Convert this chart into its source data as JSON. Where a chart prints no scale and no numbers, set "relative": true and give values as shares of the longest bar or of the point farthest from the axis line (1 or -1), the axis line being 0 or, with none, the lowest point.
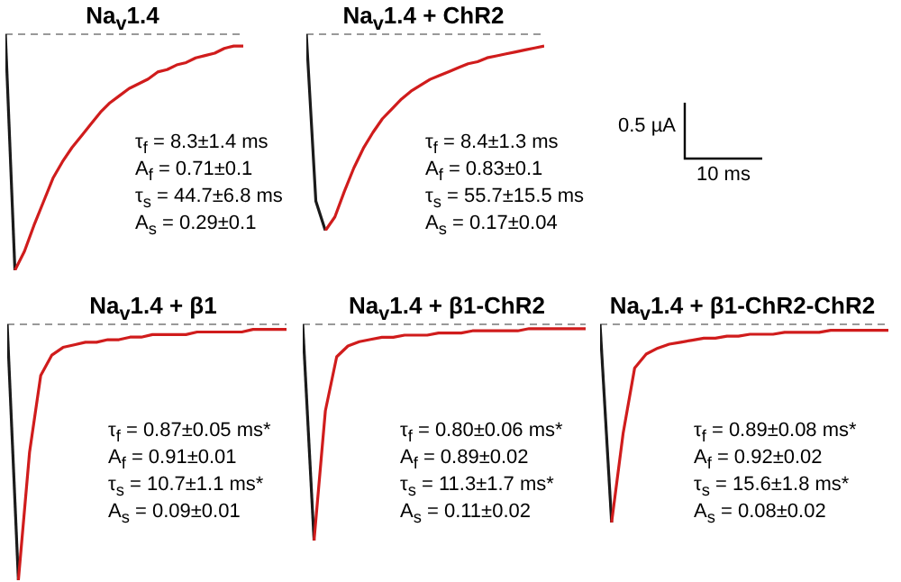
{
  "chart_data": [
    {
      "type": "line",
      "title": "Na$_{v}$1.4",
      "relative": true,
      "marker": "none",
      "categories": [
        null,
        null,
        null,
        null,
        null,
        null,
        null,
        null,
        null,
        null,
        null,
        null,
        null,
        null,
        null,
        null,
        null,
        null,
        null,
        null,
        null,
        null,
        null,
        null,
        null,
        null
      ],
      "series": [
        {
          "color": "#1a1a1a",
          "values": [
            0,
            -1,
            null,
            null,
            null,
            null,
            null,
            null,
            null,
            null,
            null,
            null,
            null,
            null,
            null,
            null,
            null,
            null,
            null,
            null,
            null,
            null,
            null,
            null,
            null,
            null
          ]
        },
        {
          "color": "#d01c1c",
          "values": [
            null,
            -1,
            -0.92,
            -0.81,
            -0.71,
            -0.61,
            -0.54,
            -0.48,
            -0.43,
            -0.38,
            -0.33,
            -0.29,
            -0.26,
            -0.23,
            -0.21,
            -0.19,
            -0.16,
            -0.15,
            -0.13,
            -0.12,
            -0.1,
            -0.09,
            -0.08,
            -0.06,
            -0.05,
            -0.05
          ]
        }
      ],
      "ref_lines": [
        {
          "axis": "y",
          "value": 0,
          "color": "#999999",
          "line_style": "dashed"
        }
      ],
      "annotations": [
        "τ$_{f}$ = 8.3±1.4 ms",
        "A$_{f}$ = 0.71±0.1",
        "τ$_{s}$ = 44.7±6.8 ms",
        "A$_{s}$ = 0.29±0.1"
      ]
    },
    {
      "type": "line",
      "title": "Na$_{v}$1.4 + ChR2",
      "relative": true,
      "marker": "none",
      "categories": [
        null,
        null,
        null,
        null,
        null,
        null,
        null,
        null,
        null,
        null,
        null,
        null,
        null,
        null,
        null,
        null,
        null,
        null,
        null,
        null,
        null,
        null,
        null,
        null,
        null,
        null
      ],
      "series": [
        {
          "color": "#1a1a1a",
          "values": [
            0,
            -0.85,
            -1,
            null,
            null,
            null,
            null,
            null,
            null,
            null,
            null,
            null,
            null,
            null,
            null,
            null,
            null,
            null,
            null,
            null,
            null,
            null,
            null,
            null,
            null,
            null
          ]
        },
        {
          "color": "#d01c1c",
          "values": [
            null,
            null,
            -1,
            -0.93,
            -0.8,
            -0.68,
            -0.58,
            -0.5,
            -0.43,
            -0.38,
            -0.33,
            -0.29,
            -0.26,
            -0.23,
            -0.21,
            -0.19,
            -0.17,
            -0.15,
            -0.14,
            -0.12,
            -0.11,
            -0.1,
            -0.09,
            -0.08,
            -0.07,
            -0.06
          ]
        }
      ],
      "ref_lines": [
        {
          "axis": "y",
          "value": 0,
          "color": "#999999",
          "line_style": "dashed"
        }
      ],
      "annotations": [
        "τ$_{f}$ = 8.4±1.3 ms",
        "A$_{f}$ = 0.83±0.1",
        "τ$_{s}$ = 55.7±15.5 ms",
        "A$_{s}$ = 0.17±0.04"
      ]
    },
    {
      "type": "other",
      "annotations": [
        "0.5 µA",
        "10 ms"
      ]
    },
    {
      "type": "line",
      "title": "Na$_{v}$1.4 + β1",
      "relative": true,
      "marker": "none",
      "categories": [
        null,
        null,
        null,
        null,
        null,
        null,
        null,
        null,
        null,
        null,
        null,
        null,
        null,
        null,
        null,
        null,
        null,
        null,
        null,
        null,
        null,
        null,
        null,
        null,
        null,
        null
      ],
      "series": [
        {
          "color": "#1a1a1a",
          "values": [
            0,
            -1,
            null,
            null,
            null,
            null,
            null,
            null,
            null,
            null,
            null,
            null,
            null,
            null,
            null,
            null,
            null,
            null,
            null,
            null,
            null,
            null,
            null,
            null,
            null,
            null
          ]
        },
        {
          "color": "#d01c1c",
          "values": [
            null,
            -1,
            -0.5,
            -0.2,
            -0.12,
            -0.09,
            -0.08,
            -0.07,
            -0.07,
            -0.06,
            -0.06,
            -0.05,
            -0.05,
            -0.04,
            -0.04,
            -0.04,
            -0.04,
            -0.03,
            -0.03,
            -0.03,
            -0.03,
            -0.03,
            -0.02,
            -0.02,
            -0.02,
            -0.02
          ]
        }
      ],
      "ref_lines": [
        {
          "axis": "y",
          "value": 0,
          "color": "#999999",
          "line_style": "dashed"
        }
      ],
      "annotations": [
        "τ$_{f}$ = 0.87±0.05 ms*",
        "A$_{f}$ = 0.91±0.01",
        "τ$_{s}$ = 10.7±1.1 ms*",
        "A$_{s}$ = 0.09±0.01"
      ]
    },
    {
      "type": "line",
      "title": "Na$_{v}$1.4 + β1-ChR2",
      "relative": true,
      "marker": "none",
      "categories": [
        null,
        null,
        null,
        null,
        null,
        null,
        null,
        null,
        null,
        null,
        null,
        null,
        null,
        null,
        null,
        null,
        null,
        null,
        null,
        null,
        null,
        null,
        null,
        null,
        null,
        null
      ],
      "series": [
        {
          "color": "#1a1a1a",
          "values": [
            0,
            -1,
            null,
            null,
            null,
            null,
            null,
            null,
            null,
            null,
            null,
            null,
            null,
            null,
            null,
            null,
            null,
            null,
            null,
            null,
            null,
            null,
            null,
            null,
            null,
            null
          ]
        },
        {
          "color": "#d01c1c",
          "values": [
            null,
            -1,
            -0.4,
            -0.15,
            -0.1,
            -0.08,
            -0.07,
            -0.06,
            -0.06,
            -0.05,
            -0.05,
            -0.05,
            -0.04,
            -0.04,
            -0.04,
            -0.03,
            -0.03,
            -0.03,
            -0.03,
            -0.03,
            -0.02,
            -0.02,
            -0.02,
            -0.02,
            -0.02,
            -0.02
          ]
        }
      ],
      "ref_lines": [
        {
          "axis": "y",
          "value": 0,
          "color": "#999999",
          "line_style": "dashed"
        }
      ],
      "annotations": [
        "τ$_{f}$ = 0.80±0.06 ms*",
        "A$_{f}$ = 0.89±0.02",
        "τ$_{s}$ = 11.3±1.7 ms*",
        "A$_{s}$ = 0.11±0.02"
      ]
    },
    {
      "type": "line",
      "title": "Na$_{v}$1.4 + β1-ChR2-ChR2",
      "relative": true,
      "marker": "none",
      "categories": [
        null,
        null,
        null,
        null,
        null,
        null,
        null,
        null,
        null,
        null,
        null,
        null,
        null,
        null,
        null,
        null,
        null,
        null,
        null,
        null,
        null,
        null,
        null,
        null,
        null,
        null
      ],
      "series": [
        {
          "color": "#1a1a1a",
          "values": [
            0,
            -1,
            null,
            null,
            null,
            null,
            null,
            null,
            null,
            null,
            null,
            null,
            null,
            null,
            null,
            null,
            null,
            null,
            null,
            null,
            null,
            null,
            null,
            null,
            null,
            null
          ]
        },
        {
          "color": "#d01c1c",
          "values": [
            null,
            -1,
            -0.55,
            -0.22,
            -0.15,
            -0.12,
            -0.1,
            -0.09,
            -0.08,
            -0.07,
            -0.07,
            -0.06,
            -0.06,
            -0.05,
            -0.05,
            -0.05,
            -0.04,
            -0.04,
            -0.04,
            -0.04,
            -0.03,
            -0.03,
            -0.03,
            -0.03,
            -0.03,
            -0.03
          ]
        }
      ],
      "ref_lines": [
        {
          "axis": "y",
          "value": 0,
          "color": "#999999",
          "line_style": "dashed"
        }
      ],
      "annotations": [
        "τ$_{f}$ = 0.89±0.08 ms*",
        "A$_{f}$ = 0.92±0.02",
        "τ$_{s}$ = 15.6±1.8 ms*",
        "A$_{s}$ = 0.08±0.02"
      ]
    }
  ]
}
